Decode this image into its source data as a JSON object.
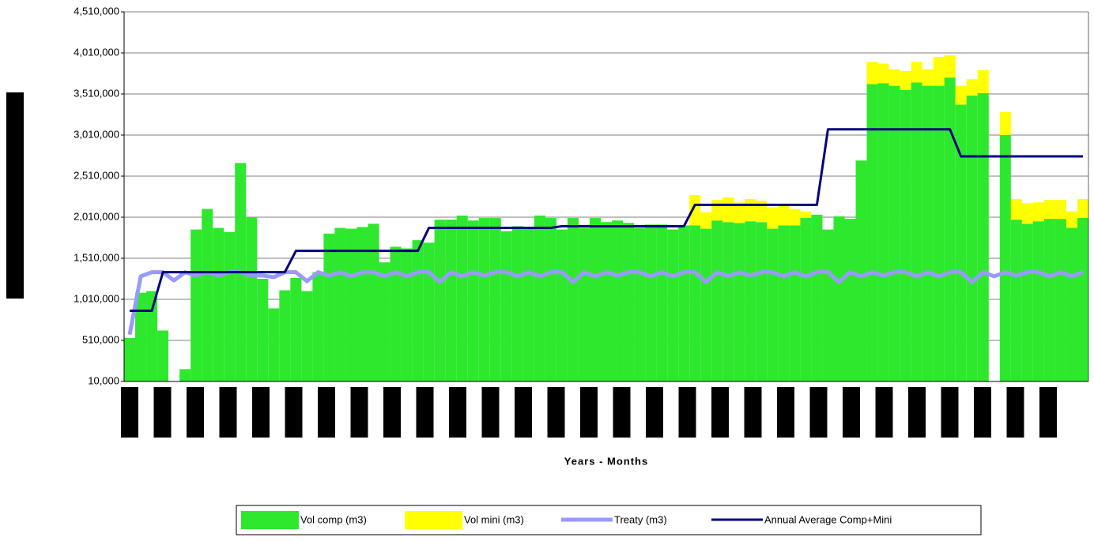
{
  "chart_data": {
    "type": "bar",
    "x_label": "Years - Months",
    "categories": [
      null,
      null,
      null,
      null,
      null,
      null,
      null,
      null,
      null,
      null,
      null,
      null,
      null,
      null,
      null,
      null,
      null,
      null,
      null,
      null,
      null,
      null,
      null,
      null,
      null,
      null,
      null,
      null,
      null,
      null,
      null,
      null,
      null,
      null,
      null,
      null,
      null,
      null,
      null,
      null,
      null,
      null,
      null,
      null,
      null,
      null,
      null,
      null,
      null,
      null,
      null,
      null,
      null,
      null,
      null,
      null,
      null,
      null,
      null,
      null,
      null,
      null,
      null,
      null,
      null,
      null,
      null,
      null,
      null,
      null,
      null,
      null,
      null,
      null,
      null,
      null,
      null,
      null,
      null,
      null,
      null,
      null,
      null,
      null,
      null,
      null,
      null
    ],
    "series": [
      {
        "name": "Vol comp (m3)",
        "kind": "bar",
        "color": "#2ee82e",
        "values": [
          530000,
          1080000,
          1100000,
          620000,
          null,
          150000,
          1850000,
          2100000,
          1870000,
          1820000,
          2660000,
          2000000,
          1250000,
          890000,
          1110000,
          1260000,
          1100000,
          1330000,
          1800000,
          1870000,
          1860000,
          1880000,
          1920000,
          1450000,
          1640000,
          1620000,
          1720000,
          1690000,
          1970000,
          1970000,
          2020000,
          1960000,
          1990000,
          1990000,
          1830000,
          1890000,
          1880000,
          2020000,
          1990000,
          1850000,
          1990000,
          1870000,
          1990000,
          1940000,
          1960000,
          1930000,
          1870000,
          1910000,
          1910000,
          1850000,
          1900000,
          1900000,
          1860000,
          1960000,
          1940000,
          1930000,
          1950000,
          1940000,
          1860000,
          1900000,
          1900000,
          1990000,
          2030000,
          1850000,
          2010000,
          1980000,
          2690000,
          3620000,
          3630000,
          3600000,
          3550000,
          3640000,
          3600000,
          3600000,
          3700000,
          3370000,
          3480000,
          3510000,
          null,
          3000000,
          1970000,
          1920000,
          1950000,
          1980000,
          1980000,
          1870000,
          1990000
        ]
      },
      {
        "name": "Vol mini (m3)",
        "kind": "bar",
        "color": "#ffff00",
        "values": [
          0,
          0,
          0,
          0,
          0,
          0,
          0,
          0,
          0,
          0,
          0,
          0,
          0,
          0,
          0,
          0,
          0,
          0,
          0,
          0,
          0,
          0,
          0,
          0,
          0,
          0,
          0,
          0,
          0,
          0,
          0,
          0,
          0,
          0,
          0,
          0,
          0,
          0,
          0,
          0,
          0,
          0,
          0,
          0,
          0,
          0,
          0,
          0,
          0,
          0,
          0,
          370000,
          200000,
          250000,
          300000,
          250000,
          270000,
          260000,
          260000,
          240000,
          200000,
          80000,
          0,
          0,
          0,
          0,
          0,
          270000,
          240000,
          200000,
          230000,
          250000,
          200000,
          350000,
          270000,
          230000,
          200000,
          280000,
          0,
          280000,
          250000,
          250000,
          230000,
          230000,
          230000,
          200000,
          230000
        ]
      },
      {
        "name": "Treaty (m3)",
        "kind": "line",
        "color": "#9999ff",
        "width": 5,
        "values": [
          580000,
          1290000,
          1340000,
          1340000,
          1240000,
          1340000,
          1300000,
          1340000,
          1300000,
          1340000,
          1340000,
          1300000,
          1300000,
          1280000,
          1340000,
          1340000,
          1230000,
          1340000,
          1300000,
          1340000,
          1290000,
          1340000,
          1340000,
          1290000,
          1340000,
          1290000,
          1340000,
          1340000,
          1220000,
          1340000,
          1290000,
          1340000,
          1300000,
          1340000,
          1340000,
          1290000,
          1340000,
          1290000,
          1340000,
          1340000,
          1220000,
          1340000,
          1290000,
          1340000,
          1300000,
          1340000,
          1340000,
          1290000,
          1340000,
          1290000,
          1340000,
          1340000,
          1220000,
          1340000,
          1290000,
          1340000,
          1300000,
          1340000,
          1340000,
          1290000,
          1340000,
          1290000,
          1340000,
          1340000,
          1220000,
          1340000,
          1290000,
          1340000,
          1300000,
          1340000,
          1340000,
          1290000,
          1340000,
          1290000,
          1340000,
          1340000,
          1220000,
          1340000,
          1290000,
          1340000,
          1300000,
          1340000,
          1340000,
          1290000,
          1340000,
          1290000,
          1340000
        ]
      },
      {
        "name": "Annual Average Comp+Mini",
        "kind": "line",
        "color": "#000080",
        "width": 3,
        "values": [
          870000,
          870000,
          870000,
          1340000,
          1340000,
          1340000,
          1340000,
          1340000,
          1340000,
          1340000,
          1340000,
          1340000,
          1340000,
          1340000,
          1340000,
          1600000,
          1600000,
          1600000,
          1600000,
          1600000,
          1600000,
          1600000,
          1600000,
          1600000,
          1600000,
          1600000,
          1600000,
          1880000,
          1880000,
          1880000,
          1880000,
          1880000,
          1880000,
          1880000,
          1880000,
          1880000,
          1880000,
          1880000,
          1880000,
          1900000,
          1900000,
          1900000,
          1900000,
          1900000,
          1900000,
          1900000,
          1900000,
          1900000,
          1900000,
          1900000,
          1900000,
          2160000,
          2160000,
          2160000,
          2160000,
          2160000,
          2160000,
          2160000,
          2160000,
          2160000,
          2160000,
          2160000,
          2160000,
          3080000,
          3080000,
          3080000,
          3080000,
          3080000,
          3080000,
          3080000,
          3080000,
          3080000,
          3080000,
          3080000,
          3080000,
          2750000,
          2750000,
          2750000,
          2750000,
          2750000,
          2750000,
          2750000,
          2750000,
          2750000,
          2750000,
          2750000,
          2750000
        ]
      }
    ],
    "ylim": [
      10000,
      4510000
    ],
    "yticks": [
      {
        "value": 10000,
        "label": "10,000"
      },
      {
        "value": 510000,
        "label": "510,000"
      },
      {
        "value": 1010000,
        "label": "1,010,000"
      },
      {
        "value": 1510000,
        "label": "1,510,000"
      },
      {
        "value": 2010000,
        "label": "2,010,000"
      },
      {
        "value": 2510000,
        "label": "2,510,000"
      },
      {
        "value": 3010000,
        "label": "3,010,000"
      },
      {
        "value": 3510000,
        "label": "3,510,000"
      },
      {
        "value": 4010000,
        "label": "4,010,000"
      },
      {
        "value": 4510000,
        "label": "4,510,000"
      }
    ],
    "grid": true,
    "legend": "bottom"
  }
}
